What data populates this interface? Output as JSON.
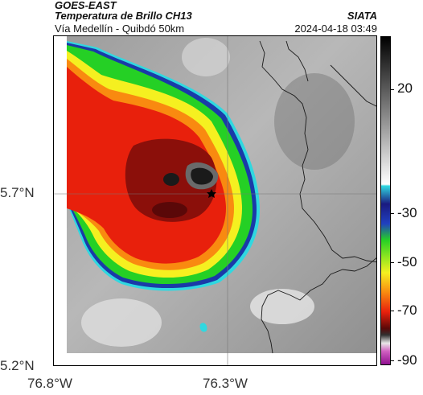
{
  "header": {
    "satellite": "GOES-EAST",
    "product": "Temperatura de Brillo CH13",
    "route": "Vía Medellín - Quibdó 50km",
    "organization": "SIATA",
    "datetime": "2024-04-18 03:49"
  },
  "axes": {
    "lat_labels": [
      "5.7°N",
      "5.2°N"
    ],
    "lon_labels": [
      "76.8°W",
      "76.3°W"
    ]
  },
  "colorbar": {
    "labels": [
      "20",
      "-30",
      "-50",
      "-70",
      "-90"
    ]
  },
  "colors": {
    "background_gray": "#a8a8a8",
    "coldest": "#8b0f0a",
    "red": "#e8200c",
    "orange": "#f98a10",
    "yellow": "#f5f020",
    "green": "#25d025",
    "blue": "#1030a0",
    "cyan": "#30d8e0",
    "core": "#1a1a1a"
  },
  "map": {
    "marker": "star",
    "features": [
      "cloud-top-brightness-temperature",
      "department-borders",
      "gridlines"
    ]
  }
}
